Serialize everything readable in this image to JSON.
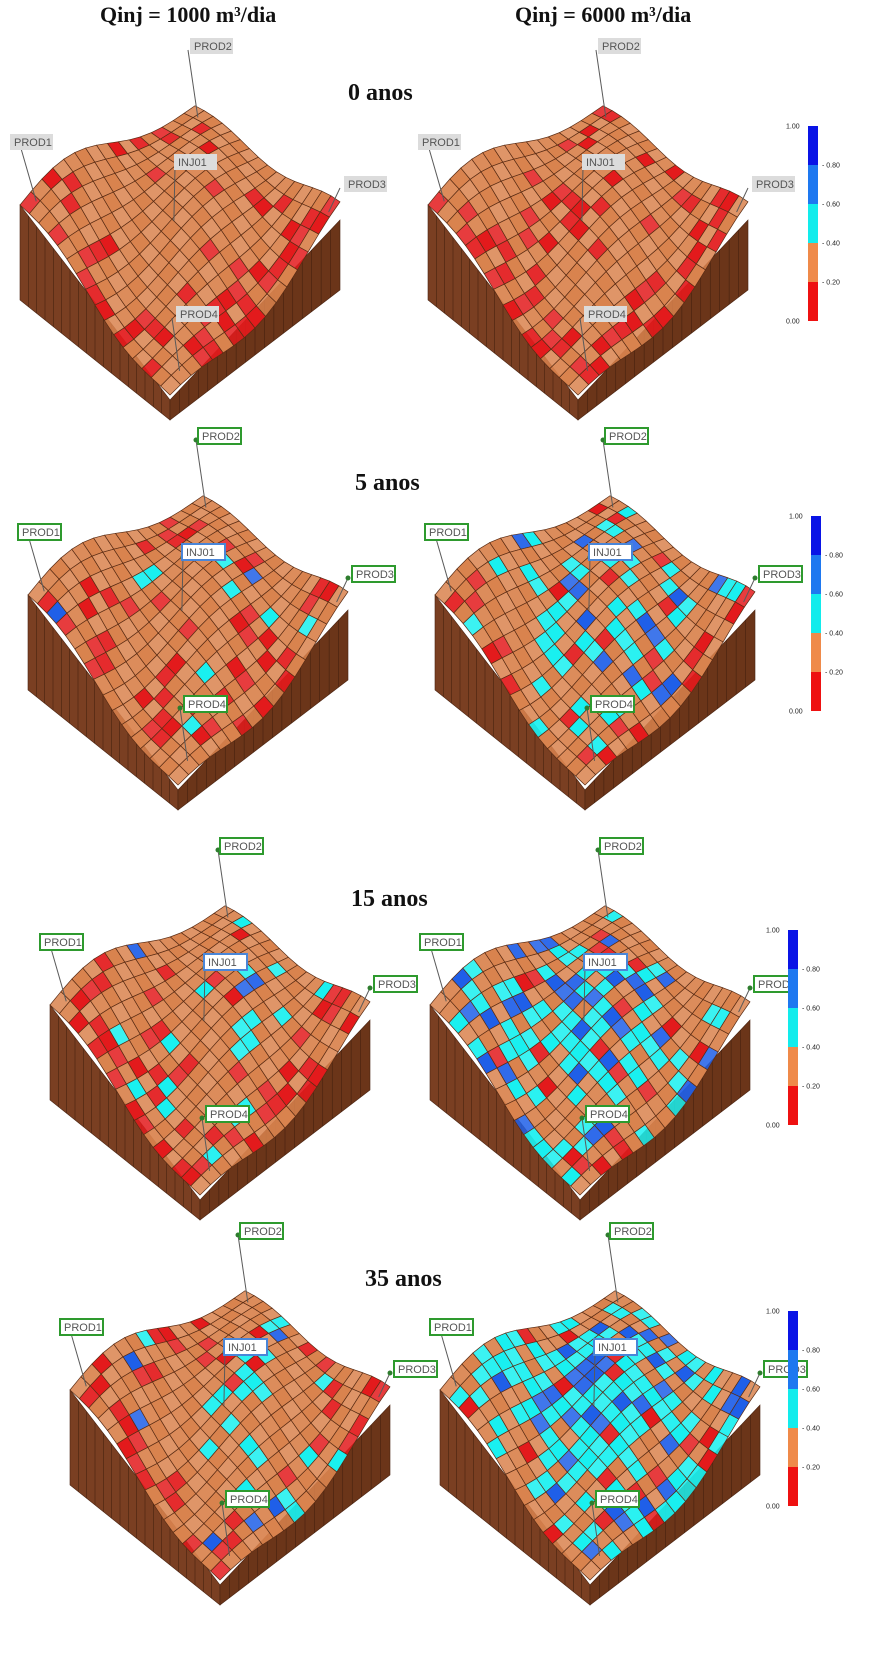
{
  "columns": {
    "left": "Qinj = 1000 m³/dia",
    "right": "Qinj = 6000 m³/dia"
  },
  "time_steps": [
    "0 anos",
    "5 anos",
    "15 anos",
    "35 anos"
  ],
  "wells": {
    "prod1": "PROD1",
    "prod2": "PROD2",
    "prod3": "PROD3",
    "prod4": "PROD4",
    "inj01": "INJ01"
  },
  "colorbar": {
    "ticks": [
      "1.00",
      "0.80",
      "0.60",
      "0.40",
      "0.20",
      "0.00"
    ],
    "colors": [
      "#0a14e6",
      "#1e78f0",
      "#12ecec",
      "#ef8a4a",
      "#ee1111"
    ]
  },
  "palette": {
    "rock": "#d9834e",
    "rock_dark": "#8a4a28",
    "rock_side": "#7a3f22",
    "low": "#e31a1c",
    "mid": "#19f0f0",
    "high": "#1f5fe8",
    "label_gray": "#dcdcdc",
    "label_green": "#2e9a2e",
    "label_blue": "#4a86d8"
  },
  "panels": [
    {
      "step": 0,
      "side": "left",
      "red": 0.22,
      "cyan": 0.0,
      "blue": 0.0
    },
    {
      "step": 0,
      "side": "right",
      "red": 0.22,
      "cyan": 0.0,
      "blue": 0.0
    },
    {
      "step": 1,
      "side": "left",
      "red": 0.18,
      "cyan": 0.04,
      "blue": 0.01
    },
    {
      "step": 1,
      "side": "right",
      "red": 0.12,
      "cyan": 0.2,
      "blue": 0.05
    },
    {
      "step": 2,
      "side": "left",
      "red": 0.16,
      "cyan": 0.08,
      "blue": 0.03
    },
    {
      "step": 2,
      "side": "right",
      "red": 0.06,
      "cyan": 0.45,
      "blue": 0.1
    },
    {
      "step": 3,
      "side": "left",
      "red": 0.14,
      "cyan": 0.14,
      "blue": 0.05
    },
    {
      "step": 3,
      "side": "right",
      "red": 0.04,
      "cyan": 0.55,
      "blue": 0.15
    }
  ]
}
